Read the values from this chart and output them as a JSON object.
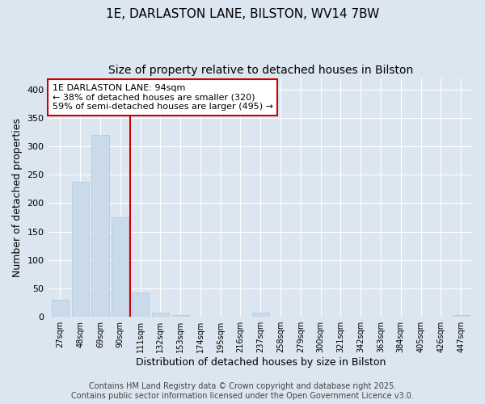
{
  "title_line1": "1E, DARLASTON LANE, BILSTON, WV14 7BW",
  "title_line2": "Size of property relative to detached houses in Bilston",
  "xlabel": "Distribution of detached houses by size in Bilston",
  "ylabel": "Number of detached properties",
  "categories": [
    "27sqm",
    "48sqm",
    "69sqm",
    "90sqm",
    "111sqm",
    "132sqm",
    "153sqm",
    "174sqm",
    "195sqm",
    "216sqm",
    "237sqm",
    "258sqm",
    "279sqm",
    "300sqm",
    "321sqm",
    "342sqm",
    "363sqm",
    "384sqm",
    "405sqm",
    "426sqm",
    "447sqm"
  ],
  "values": [
    30,
    238,
    320,
    175,
    43,
    8,
    3,
    0,
    0,
    0,
    8,
    0,
    0,
    0,
    0,
    0,
    0,
    0,
    0,
    0,
    3
  ],
  "bar_color": "#c9daea",
  "bar_edge_color": "#b0c8dc",
  "vline_x_index": 3,
  "vline_color": "#cc0000",
  "annotation_line1": "1E DARLASTON LANE: 94sqm",
  "annotation_line2": "← 38% of detached houses are smaller (320)",
  "annotation_line3": "59% of semi-detached houses are larger (495) →",
  "annotation_box_color": "#ffffff",
  "annotation_box_edge": "#cc0000",
  "ylim": [
    0,
    420
  ],
  "yticks": [
    0,
    50,
    100,
    150,
    200,
    250,
    300,
    350,
    400
  ],
  "background_color": "#dce6f0",
  "footer_text": "Contains HM Land Registry data © Crown copyright and database right 2025.\nContains public sector information licensed under the Open Government Licence v3.0.",
  "title_fontsize": 11,
  "subtitle_fontsize": 10,
  "annotation_fontsize": 8,
  "footer_fontsize": 7
}
